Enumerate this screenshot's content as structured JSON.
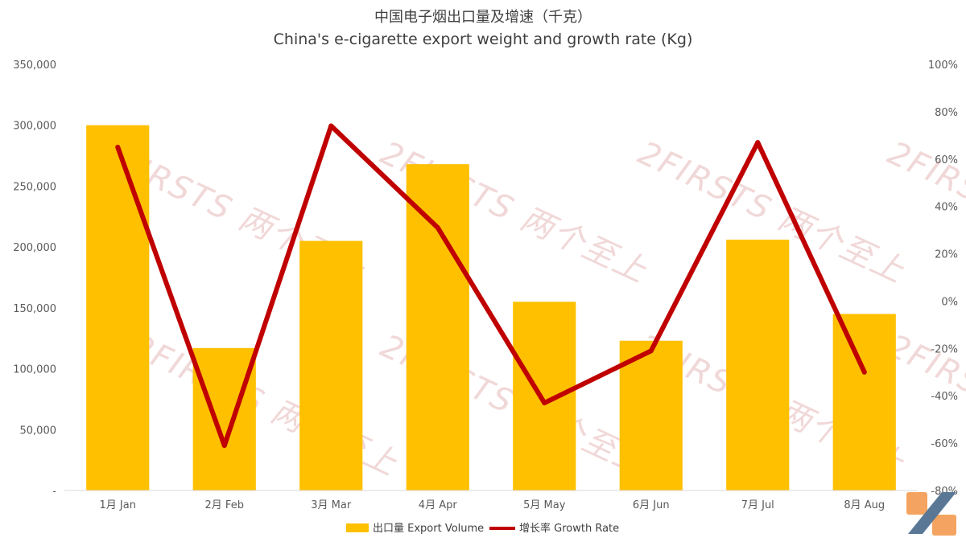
{
  "chart_data": {
    "type": "bar+line",
    "title": "中国电子烟出口量及增速（千克）",
    "subtitle": "China's e-cigarette export weight and growth rate (Kg)",
    "categories": [
      "1月 Jan",
      "2月 Feb",
      "3月 Mar",
      "4月 Apr",
      "5月 May",
      "6月 Jun",
      "7月 Jul",
      "8月 Aug"
    ],
    "series": [
      {
        "name": "出口量 Export Volume",
        "type": "bar",
        "axis": "left",
        "color": "#ffc000",
        "values": [
          300000,
          117000,
          205000,
          268000,
          155000,
          123000,
          206000,
          145000
        ]
      },
      {
        "name": "增长率 Growth Rate",
        "type": "line",
        "axis": "right",
        "color": "#c00000",
        "values": [
          65,
          -61,
          74,
          31,
          -43,
          -21,
          67,
          -30
        ]
      }
    ],
    "y_left": {
      "min": 0,
      "max": 350000,
      "step": 50000,
      "tick_labels": [
        "-",
        "50,000",
        "100,000",
        "150,000",
        "200,000",
        "250,000",
        "300,000",
        "350,000"
      ]
    },
    "y_right": {
      "min": -80,
      "max": 100,
      "step": 20,
      "tick_labels": [
        "-80%",
        "-60%",
        "-40%",
        "-20%",
        "0%",
        "20%",
        "40%",
        "60%",
        "80%",
        "100%"
      ]
    },
    "grid": false,
    "legend_position": "bottom"
  },
  "watermark": {
    "text": "2FIRSTS 两个至上"
  },
  "colors": {
    "logo_orange": "#f4a460",
    "logo_blue": "#5a7896"
  }
}
